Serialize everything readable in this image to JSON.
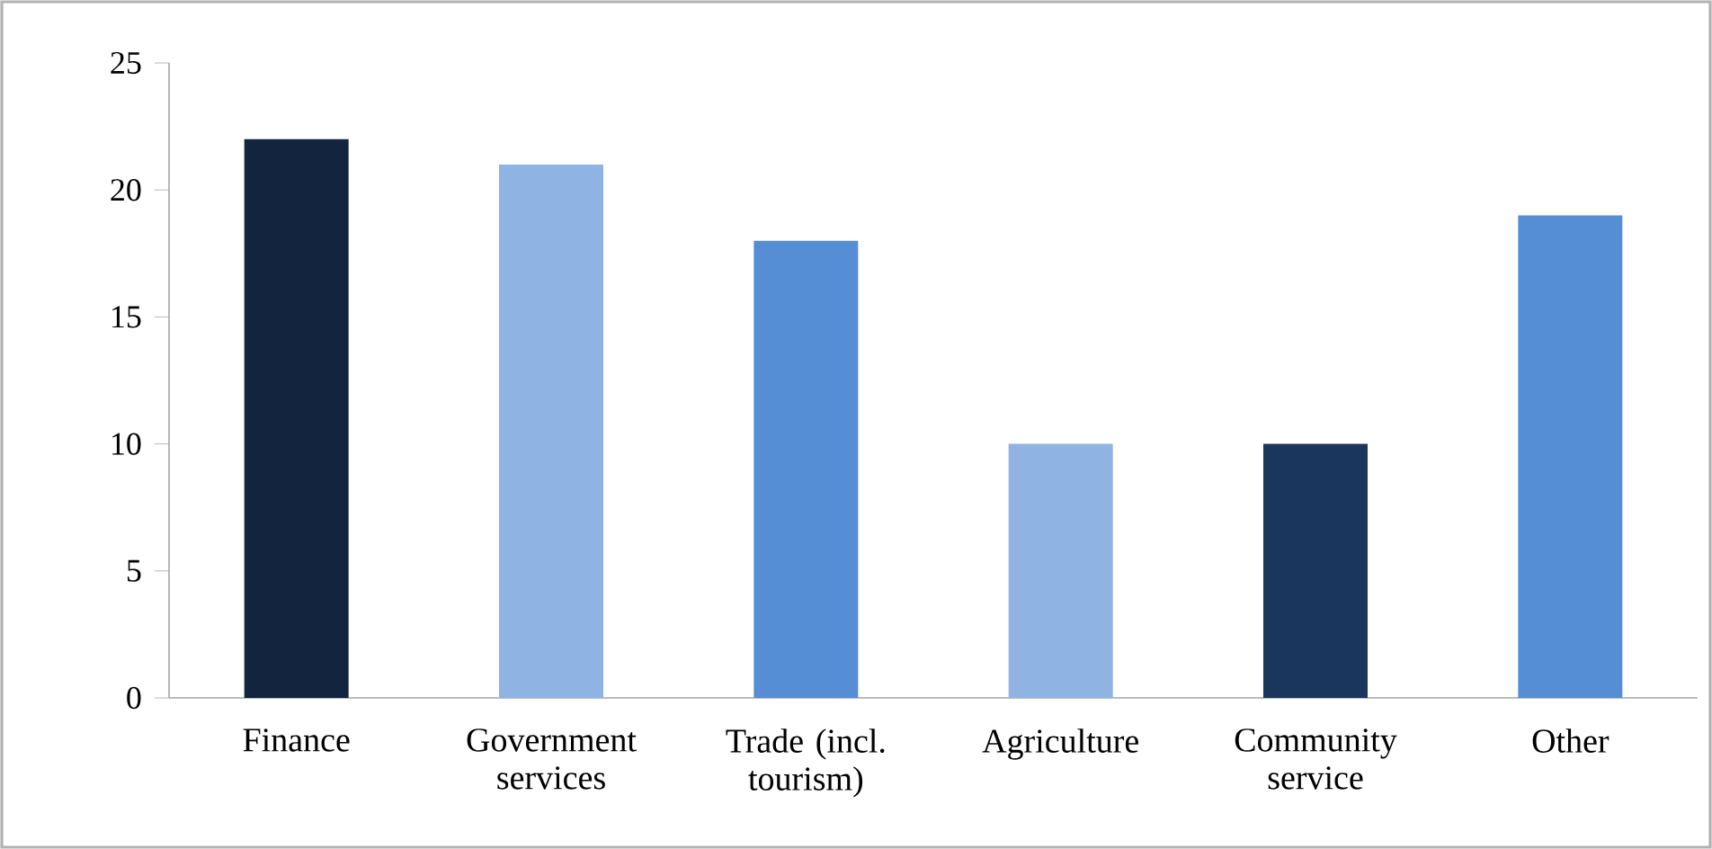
{
  "chart_data": {
    "type": "bar",
    "categories": [
      "Finance",
      "Government services",
      "Trade (incl. tourism)",
      "Agriculture",
      "Community service",
      "Other"
    ],
    "values": [
      22,
      21,
      18,
      10,
      10,
      19
    ],
    "colors": [
      "#13243f",
      "#8fb4e3",
      "#558ed5",
      "#8fb4e3",
      "#1b365d",
      "#558ed5"
    ],
    "ylim": [
      0,
      25
    ],
    "yticks": [
      0,
      5,
      10,
      15,
      20,
      25
    ],
    "grid": false
  }
}
